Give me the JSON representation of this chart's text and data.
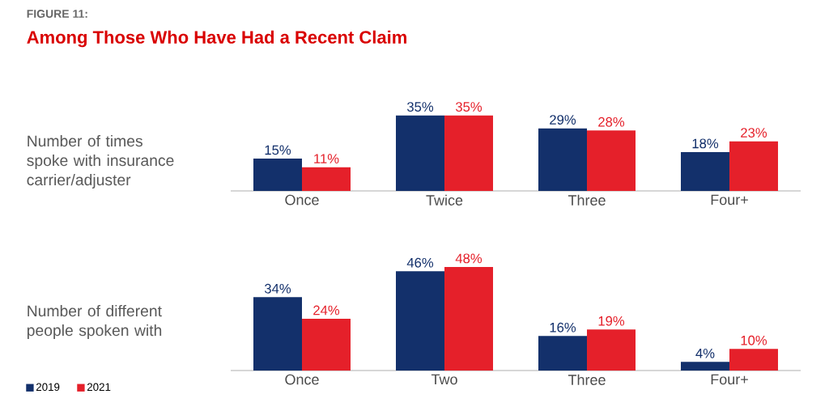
{
  "chart_data": [
    {
      "type": "bar",
      "title": "Among Those Who Have Had a Recent Claim",
      "annotations": [
        "FIGURE 11:"
      ],
      "ylabel": "Number of times spoke with insurance carrier/adjuster",
      "categories": [
        "Once",
        "Twice",
        "Three",
        "Four+"
      ],
      "series": [
        {
          "color": "#13306b",
          "values": [
            15,
            35,
            29,
            18
          ],
          "value_labels": [
            "15%",
            "35%",
            "29%",
            "18%"
          ]
        },
        {
          "color": "#e5202a",
          "values": [
            11,
            35,
            28,
            23
          ],
          "value_labels": [
            "11%",
            "35%",
            "28%",
            "23%"
          ]
        }
      ]
    },
    {
      "type": "bar",
      "ylabel": "Number of different people spoken with",
      "categories": [
        "Once",
        "Two",
        "Three",
        "Four+"
      ],
      "series": [
        {
          "name": "2019",
          "color": "#13306b",
          "values": [
            34,
            46,
            16,
            4
          ],
          "value_labels": [
            "34%",
            "46%",
            "16%",
            "4%"
          ]
        },
        {
          "name": "2021",
          "color": "#e5202a",
          "values": [
            24,
            48,
            19,
            10
          ],
          "value_labels": [
            "24%",
            "48%",
            "19%",
            "10%"
          ]
        }
      ],
      "legend": "left"
    }
  ]
}
